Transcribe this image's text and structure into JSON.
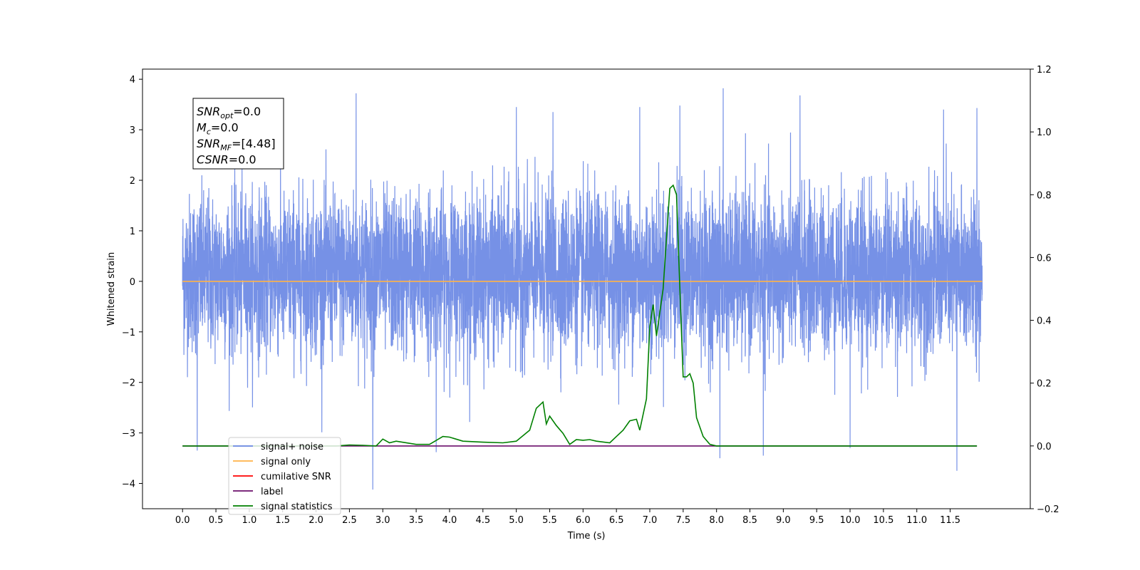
{
  "chart_data": {
    "type": "line",
    "xlabel": "Time (s)",
    "ylabel": "Whitened strain",
    "ylabel_right": "",
    "xlim": [
      -0.6,
      12.7
    ],
    "ylim": [
      -4.5,
      4.2
    ],
    "ylim_right": [
      -0.2,
      1.2
    ],
    "x_ticks": [
      0.0,
      0.5,
      1.0,
      1.5,
      2.0,
      2.5,
      3.0,
      3.5,
      4.0,
      4.5,
      5.0,
      5.5,
      6.0,
      6.5,
      7.0,
      7.5,
      8.0,
      8.5,
      9.0,
      9.5,
      10.0,
      10.5,
      11.0,
      11.5
    ],
    "x_tick_labels": [
      "0.0",
      "0.5",
      "1.0",
      "1.5",
      "2.0",
      "2.5",
      "3.0",
      "3.5",
      "4.0",
      "4.5",
      "5.0",
      "5.5",
      "6.0",
      "6.5",
      "7.0",
      "7.5",
      "8.0",
      "8.5",
      "9.0",
      "9.5",
      "10.0",
      "10.5",
      "11.0",
      "11.5"
    ],
    "y_ticks": [
      -4,
      -3,
      -2,
      -1,
      0,
      1,
      2,
      3,
      4
    ],
    "y_tick_labels": [
      "−4",
      "−3",
      "−2",
      "−1",
      "0",
      "1",
      "2",
      "3",
      "4"
    ],
    "y_right_ticks": [
      -0.2,
      0.0,
      0.2,
      0.4,
      0.6,
      0.8,
      1.0,
      1.2
    ],
    "y_right_tick_labels": [
      "−0.2",
      "0.0",
      "0.2",
      "0.4",
      "0.6",
      "0.8",
      "1.0",
      "1.2"
    ],
    "grid": false,
    "legend_position": "bottom-left",
    "annotation": {
      "lines": [
        {
          "main": "SNR",
          "sub": "opt",
          "rest": "=0.0"
        },
        {
          "main": "M",
          "sub": "c",
          "rest": "=0.0"
        },
        {
          "main": "SNR",
          "sub": "MF",
          "rest": "=[4.48]"
        },
        {
          "main": "CSNR",
          "sub": "",
          "rest": "=0.0"
        }
      ]
    },
    "series": [
      {
        "name": "signal+ noise",
        "color": "#6a88e4",
        "axis": "left",
        "style": "dense-noise",
        "x_range": [
          0.0,
          11.98
        ],
        "typical_range": [
          -1.5,
          1.8
        ],
        "peaks": [
          {
            "x": 2.6,
            "y": 3.72
          },
          {
            "x": 8.1,
            "y": 3.82
          },
          {
            "x": 9.25,
            "y": 3.68
          },
          {
            "x": 11.9,
            "y": 3.43
          },
          {
            "x": 11.4,
            "y": 3.4
          },
          {
            "x": 7.45,
            "y": 3.48
          },
          {
            "x": 5.0,
            "y": 3.45
          },
          {
            "x": 5.55,
            "y": 3.35
          },
          {
            "x": 6.85,
            "y": 3.45
          }
        ],
        "troughs": [
          {
            "x": 2.85,
            "y": -4.12
          },
          {
            "x": 11.6,
            "y": -3.75
          },
          {
            "x": 8.05,
            "y": -3.5
          },
          {
            "x": 8.7,
            "y": -3.45
          },
          {
            "x": 3.8,
            "y": -3.38
          },
          {
            "x": 0.22,
            "y": -3.35
          },
          {
            "x": 10.0,
            "y": -3.3
          }
        ]
      },
      {
        "name": "signal only",
        "color": "#ffb347",
        "axis": "left",
        "x": [
          0.0,
          11.98
        ],
        "y": [
          0.0,
          0.0
        ]
      },
      {
        "name": "cumilative SNR",
        "color": "#ff0000",
        "axis": "right",
        "x": [],
        "y": []
      },
      {
        "name": "label",
        "color": "#6b0f6b",
        "axis": "right",
        "x": [
          0.0,
          11.9
        ],
        "y": [
          0.0,
          0.0
        ]
      },
      {
        "name": "signal statistics",
        "color": "#008000",
        "axis": "right",
        "x": [
          0.0,
          0.5,
          1.0,
          1.5,
          2.0,
          2.3,
          2.5,
          2.7,
          2.9,
          3.0,
          3.1,
          3.2,
          3.5,
          3.7,
          3.9,
          4.0,
          4.2,
          4.5,
          4.8,
          5.0,
          5.2,
          5.3,
          5.4,
          5.45,
          5.5,
          5.6,
          5.7,
          5.8,
          5.9,
          6.0,
          6.1,
          6.2,
          6.4,
          6.5,
          6.6,
          6.7,
          6.8,
          6.85,
          6.9,
          6.95,
          7.0,
          7.05,
          7.1,
          7.2,
          7.3,
          7.35,
          7.4,
          7.45,
          7.5,
          7.55,
          7.6,
          7.65,
          7.7,
          7.8,
          7.9,
          8.0,
          8.5,
          9.0,
          9.5,
          10.0,
          10.5,
          11.0,
          11.5,
          11.9
        ],
        "y": [
          0.0,
          0.0,
          0.0,
          0.0,
          0.0,
          0.0,
          0.003,
          0.002,
          0.0,
          0.022,
          0.01,
          0.015,
          0.005,
          0.005,
          0.03,
          0.028,
          0.015,
          0.012,
          0.01,
          0.015,
          0.05,
          0.12,
          0.14,
          0.07,
          0.095,
          0.065,
          0.04,
          0.005,
          0.02,
          0.018,
          0.02,
          0.015,
          0.01,
          0.03,
          0.05,
          0.08,
          0.085,
          0.05,
          0.1,
          0.15,
          0.38,
          0.45,
          0.35,
          0.5,
          0.82,
          0.83,
          0.8,
          0.5,
          0.22,
          0.22,
          0.23,
          0.2,
          0.09,
          0.03,
          0.005,
          0.0,
          0.0,
          0.0,
          0.0,
          0.0,
          0.0,
          0.0,
          0.0,
          0.0
        ]
      }
    ]
  }
}
